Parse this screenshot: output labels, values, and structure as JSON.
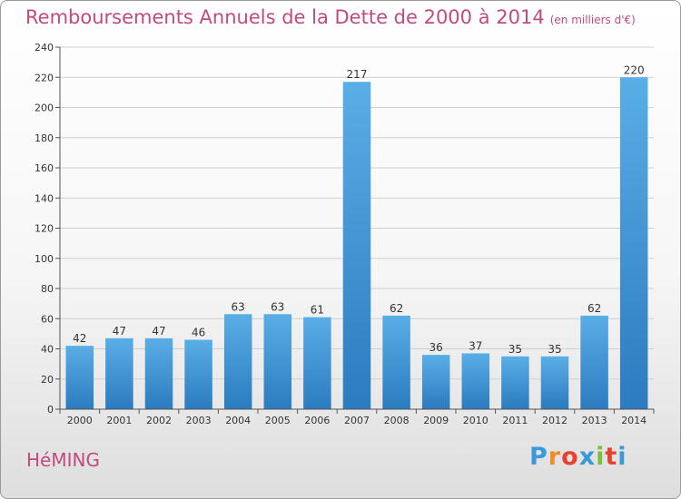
{
  "header": {
    "title": "Remboursements Annuels de la Dette de 2000 à 2014",
    "subtitle": "(en milliers d'€)"
  },
  "footer": {
    "commune": "HéMING",
    "logo_letters": [
      "P",
      "r",
      "o",
      "x",
      "i",
      "t",
      "i"
    ],
    "logo_colors": [
      "#3a9ad9",
      "#f28c28",
      "#e8412e",
      "#3a9ad9",
      "#7bbf3a",
      "#e8412e",
      "#3a9ad9"
    ]
  },
  "chart_data": {
    "type": "bar",
    "categories": [
      "2000",
      "2001",
      "2002",
      "2003",
      "2004",
      "2005",
      "2006",
      "2007",
      "2008",
      "2009",
      "2010",
      "2011",
      "2012",
      "2013",
      "2014"
    ],
    "values": [
      42,
      47,
      47,
      46,
      63,
      63,
      61,
      217,
      62,
      36,
      37,
      35,
      35,
      62,
      220
    ],
    "title": "Remboursements Annuels de la Dette de 2000 à 2014",
    "ylim": [
      0,
      240
    ],
    "yticks": [
      0,
      20,
      40,
      60,
      80,
      100,
      120,
      140,
      160,
      180,
      200,
      220,
      240
    ],
    "grid": true,
    "bar_color_top": "#5aaee6",
    "bar_color_bottom": "#2b7bbf"
  }
}
